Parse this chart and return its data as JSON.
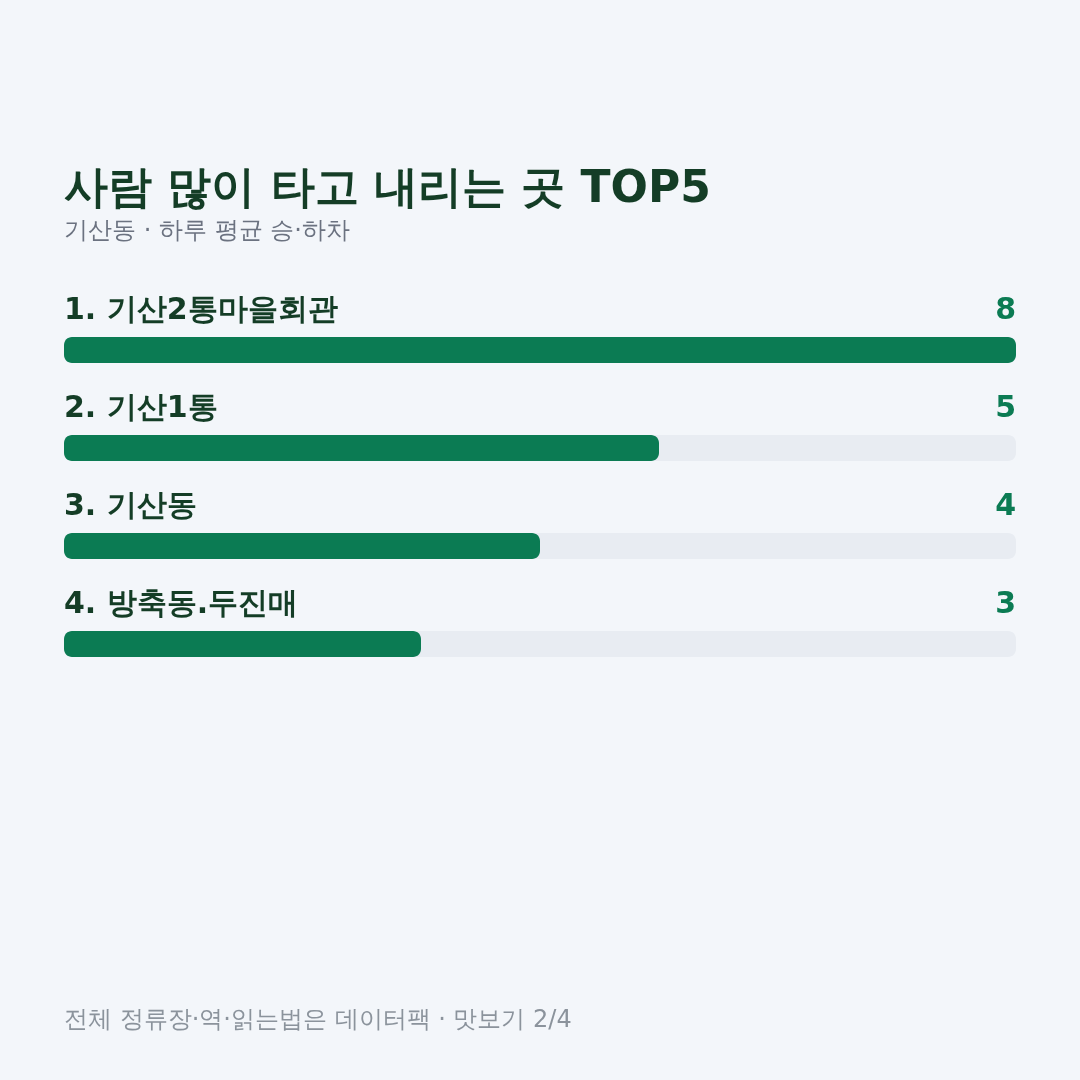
{
  "chart_data": {
    "type": "bar",
    "orientation": "horizontal",
    "title": "사람 많이 타고 내리는 곳 TOP5",
    "subtitle": "기산동 · 하루 평균 승·하차",
    "categories": [
      "1. 기산2통마을회관",
      "2. 기산1통",
      "3. 기산동",
      "4. 방축동.두진매"
    ],
    "values": [
      8,
      5,
      4,
      3
    ],
    "color": "#0b7b53",
    "xlim": [
      0,
      8
    ],
    "tick_labels": false,
    "data_labels": true,
    "annotations": [
      "전체 정류장·역·읽는법은 데이터팩 · 맛보기 2/4"
    ]
  }
}
